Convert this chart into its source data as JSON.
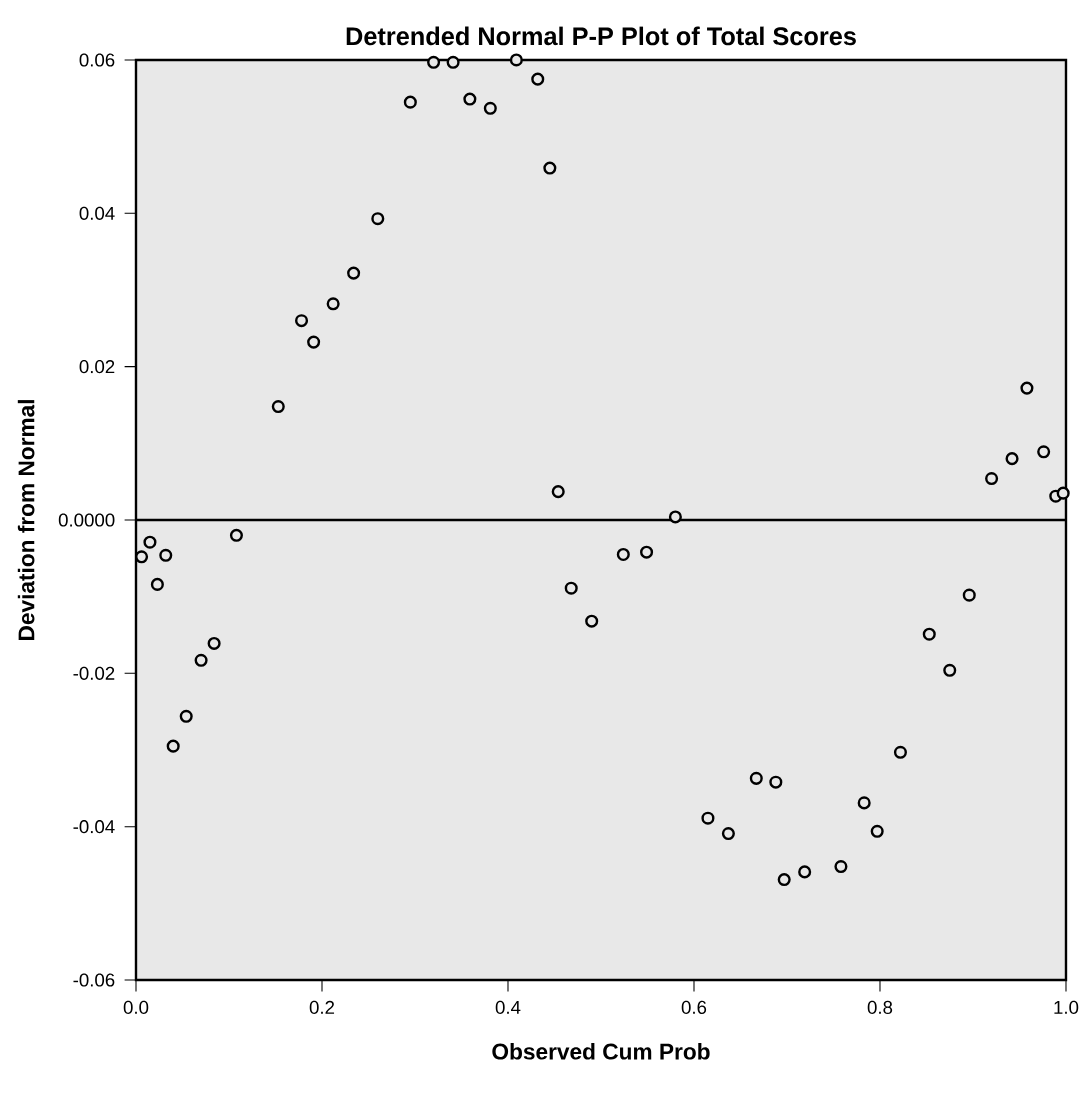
{
  "chart_data": {
    "type": "scatter",
    "title": "Detrended Normal P-P Plot of Total Scores",
    "xlabel": "Observed Cum Prob",
    "ylabel": "Deviation from Normal",
    "series": [
      {
        "color": "#000000",
        "x": [
          0.006,
          0.015,
          0.023,
          0.032,
          0.04,
          0.054,
          0.07,
          0.084,
          0.108,
          0.153,
          0.178,
          0.191,
          0.212,
          0.234,
          0.26,
          0.295,
          0.32,
          0.341,
          0.359,
          0.381,
          0.409,
          0.432,
          0.445,
          0.454,
          0.468,
          0.49,
          0.524,
          0.549,
          0.58,
          0.615,
          0.637,
          0.667,
          0.688,
          0.697,
          0.719,
          0.758,
          0.783,
          0.797,
          0.822,
          0.853,
          0.875,
          0.896,
          0.92,
          0.942,
          0.958,
          0.976,
          0.989,
          0.997
        ],
        "values": [
          -0.0048,
          -0.0029,
          -0.0084,
          -0.0046,
          -0.0295,
          -0.0256,
          -0.0183,
          -0.0161,
          -0.002,
          0.0148,
          0.026,
          0.0232,
          0.0282,
          0.0322,
          0.0393,
          0.0545,
          0.0597,
          0.0597,
          0.0549,
          0.0537,
          0.06,
          0.0575,
          0.0459,
          0.0037,
          -0.0089,
          -0.0132,
          -0.0045,
          -0.0042,
          0.0004,
          -0.0389,
          -0.0409,
          -0.0337,
          -0.0342,
          -0.0469,
          -0.0459,
          -0.0452,
          -0.0369,
          -0.0406,
          -0.0303,
          -0.0149,
          -0.0196,
          -0.0098,
          0.0054,
          0.008,
          0.0172,
          0.0089,
          0.0031,
          0.0035
        ]
      }
    ],
    "xlim": [
      0,
      1
    ],
    "ylim": [
      -0.06,
      0.06
    ],
    "xticks": [
      {
        "value": 0,
        "label": "0.0"
      },
      {
        "value": 0.2,
        "label": "0.2"
      },
      {
        "value": 0.4,
        "label": "0.4"
      },
      {
        "value": 0.6,
        "label": "0.6"
      },
      {
        "value": 0.8,
        "label": "0.8"
      },
      {
        "value": 1,
        "label": "1.0"
      }
    ],
    "yticks": [
      -0.06,
      -0.04,
      -0.02,
      {
        "value": 0,
        "label": "0.0000"
      },
      0.02,
      0.04,
      0.06
    ],
    "ref_lines": [
      {
        "axis": "y",
        "value": 0,
        "color": "#000000"
      }
    ],
    "marker": "circle",
    "grid": false
  }
}
